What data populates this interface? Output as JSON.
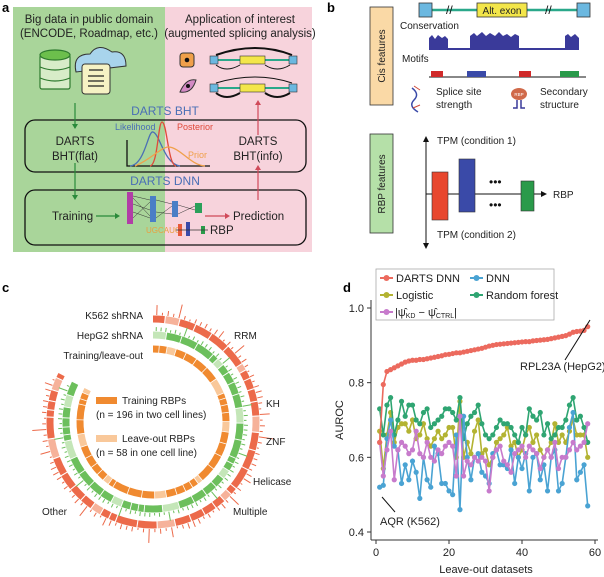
{
  "panels": {
    "a": "a",
    "b": "b",
    "c": "c",
    "d": "d"
  },
  "panel_a": {
    "left_title_1": "Big data in public domain",
    "left_title_2": "(ENCODE, Roadmap, etc.)",
    "right_title_1": "Application of interest",
    "right_title_2": "(augmented splicing analysis)",
    "bht_title": "DARTS BHT",
    "likelihood": "Likelihood",
    "posterior": "Posterior",
    "prior": "Prior",
    "bht_flat_1": "DARTS",
    "bht_flat_2": "BHT(flat)",
    "bht_info_1": "DARTS",
    "bht_info_2": "BHT(info)",
    "dnn_title": "DARTS DNN",
    "training": "Training",
    "prediction": "Prediction",
    "rbp": "RBP",
    "motif": "UGCAUG",
    "colors": {
      "green_bg": "#a9d59a",
      "pink_bg": "#f7d3dc",
      "blue_title": "#4a6fb5"
    }
  },
  "panel_b": {
    "cis_label": "Cis features",
    "alt_exon": "Alt. exon",
    "conservation": "Conservation",
    "motifs": "Motifs",
    "splice_1": "Splice site",
    "splice_2": "strength",
    "secondary_1": "Secondary",
    "secondary_2": "structure",
    "rbp_label": "RBP features",
    "tpm1": "TPM (condition 1)",
    "tpm2": "TPM (condition 2)",
    "rbp_axis": "RBP",
    "rbp_icon_text": "RBP"
  },
  "panel_c": {
    "k562": "K562 shRNA",
    "hepg2": "HepG2 shRNA",
    "train_leave": "Training/leave-out",
    "rrm": "RRM",
    "kh": "KH",
    "znf": "ZNF",
    "helicase": "Helicase",
    "multiple": "Multiple",
    "other": "Other",
    "legend_train_1": "Training RBPs",
    "legend_train_2": "(n = 196 in two cell lines)",
    "legend_leave_1": "Leave-out RBPs",
    "legend_leave_2": "(n = 58 in one cell line)"
  },
  "chart_data": {
    "type": "line",
    "xlabel": "Leave-out datasets",
    "ylabel": "AUROC",
    "xlim": [
      0,
      60
    ],
    "ylim": [
      0.4,
      1.0
    ],
    "xticks": [
      0,
      20,
      40,
      60
    ],
    "yticks": [
      0.4,
      0.6,
      0.8,
      1.0
    ],
    "ytick_labels": [
      "0.4",
      "0.6",
      "0.8",
      "1.0"
    ],
    "xtick_labels": [
      "0",
      "20",
      "40",
      "60"
    ],
    "legend": {
      "placement": "top-left",
      "psi_prefix": "|ψ̂",
      "psi_kd": "KD",
      "psi_mid": " − ψ̂",
      "psi_ctrl": "CTRL",
      "psi_suffix": "|"
    },
    "annotations": [
      {
        "text": "RPL23A (HepG2)",
        "x": 58,
        "y": 0.95
      },
      {
        "text": "AQR (K562)",
        "x": 1,
        "y": 0.52
      }
    ],
    "series": [
      {
        "name": "Logistic",
        "color": "#b3b332",
        "values": [
          0.67,
          0.57,
          0.66,
          0.72,
          0.64,
          0.68,
          0.69,
          0.69,
          0.67,
          0.7,
          0.65,
          0.66,
          0.69,
          0.65,
          0.63,
          0.65,
          0.67,
          0.65,
          0.66,
          0.68,
          0.68,
          0.6,
          0.75,
          0.6,
          0.64,
          0.61,
          0.67,
          0.7,
          0.61,
          0.62,
          0.58,
          0.6,
          0.64,
          0.65,
          0.66,
          0.68,
          0.63,
          0.64,
          0.6,
          0.62,
          0.66,
          0.68,
          0.64,
          0.66,
          0.62,
          0.6,
          0.62,
          0.64,
          0.69,
          0.64,
          0.66,
          0.64,
          0.67,
          0.7,
          0.66,
          0.66,
          0.66,
          0.6
        ]
      },
      {
        "name": "Random forest",
        "color": "#2fa572",
        "values": [
          0.73,
          0.66,
          0.74,
          0.76,
          0.66,
          0.7,
          0.75,
          0.71,
          0.74,
          0.74,
          0.7,
          0.69,
          0.72,
          0.73,
          0.68,
          0.69,
          0.7,
          0.71,
          0.73,
          0.73,
          0.72,
          0.7,
          0.76,
          0.65,
          0.69,
          0.71,
          0.72,
          0.74,
          0.69,
          0.66,
          0.65,
          0.66,
          0.68,
          0.7,
          0.69,
          0.69,
          0.68,
          0.66,
          0.64,
          0.68,
          0.66,
          0.73,
          0.71,
          0.7,
          0.72,
          0.66,
          0.69,
          0.65,
          0.66,
          0.68,
          0.68,
          0.7,
          0.74,
          0.76,
          0.7,
          0.71,
          0.68,
          0.64
        ]
      },
      {
        "name": "DNN",
        "color": "#4aa3d3",
        "values": [
          0.52,
          0.525,
          0.65,
          0.7,
          0.63,
          0.62,
          0.53,
          0.58,
          0.54,
          0.59,
          0.56,
          0.49,
          0.6,
          0.54,
          0.52,
          0.63,
          0.61,
          0.53,
          0.53,
          0.51,
          0.5,
          0.66,
          0.46,
          0.71,
          0.6,
          0.54,
          0.6,
          0.61,
          0.56,
          0.55,
          0.53,
          0.61,
          0.62,
          0.58,
          0.58,
          0.57,
          0.62,
          0.53,
          0.6,
          0.57,
          0.61,
          0.51,
          0.6,
          0.61,
          0.54,
          0.58,
          0.51,
          0.6,
          0.62,
          0.51,
          0.53,
          0.6,
          0.68,
          0.72,
          0.54,
          0.56,
          0.58,
          0.47
        ]
      },
      {
        "name": "|ψKD − ψCTRL|",
        "color": "#c77bcc",
        "values": [
          0.64,
          0.55,
          0.62,
          0.67,
          0.54,
          0.62,
          0.64,
          0.63,
          0.61,
          0.62,
          0.67,
          0.61,
          0.6,
          0.64,
          0.6,
          0.59,
          0.62,
          0.61,
          0.63,
          0.64,
          0.63,
          0.55,
          0.71,
          0.55,
          0.59,
          0.58,
          0.6,
          0.59,
          0.6,
          0.59,
          0.51,
          0.6,
          0.62,
          0.63,
          0.59,
          0.58,
          0.56,
          0.61,
          0.62,
          0.63,
          0.6,
          0.63,
          0.62,
          0.61,
          0.57,
          0.6,
          0.62,
          0.6,
          0.64,
          0.57,
          0.6,
          0.6,
          0.62,
          0.64,
          0.62,
          0.63,
          0.64,
          0.69
        ]
      },
      {
        "name": "DARTS DNN",
        "color": "#ec6a5e",
        "values": [
          0.64,
          0.795,
          0.83,
          0.835,
          0.84,
          0.845,
          0.85,
          0.855,
          0.858,
          0.86,
          0.86,
          0.862,
          0.862,
          0.864,
          0.866,
          0.868,
          0.87,
          0.872,
          0.875,
          0.876,
          0.878,
          0.88,
          0.88,
          0.882,
          0.884,
          0.886,
          0.888,
          0.89,
          0.892,
          0.895,
          0.898,
          0.9,
          0.902,
          0.903,
          0.904,
          0.905,
          0.906,
          0.907,
          0.908,
          0.909,
          0.91,
          0.91,
          0.912,
          0.913,
          0.914,
          0.915,
          0.916,
          0.918,
          0.92,
          0.922,
          0.924,
          0.926,
          0.93,
          0.935,
          0.937,
          0.938,
          0.94,
          0.95
        ]
      }
    ]
  }
}
